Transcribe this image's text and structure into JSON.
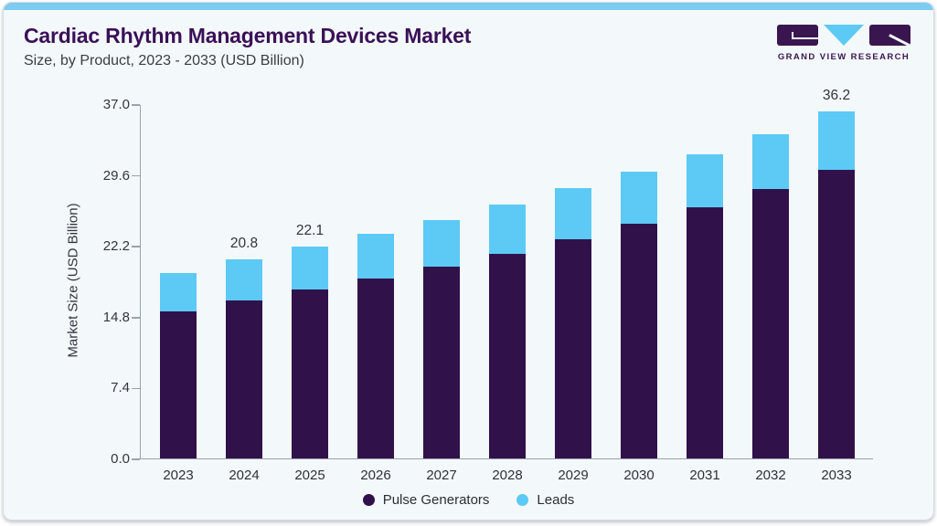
{
  "header": {
    "title": "Cardiac Rhythm Management Devices Market",
    "subtitle": "Size, by Product, 2023 - 2033 (USD Billion)"
  },
  "logo": {
    "text": "GRAND VIEW RESEARCH"
  },
  "chart_data": {
    "type": "bar",
    "stacked": true,
    "title": "Cardiac Rhythm Management Devices Market Size, by Product, 2023 - 2033 (USD Billion)",
    "ylabel": "Market Size (USD Billion)",
    "xlabel": "",
    "ylim": [
      0,
      37
    ],
    "yticks": [
      "0.0",
      "7.4",
      "14.8",
      "22.2",
      "29.6",
      "37.0"
    ],
    "grid": false,
    "legend_position": "bottom",
    "categories": [
      "2023",
      "2024",
      "2025",
      "2026",
      "2027",
      "2028",
      "2029",
      "2030",
      "2031",
      "2032",
      "2033"
    ],
    "series": [
      {
        "name": "Pulse Generators",
        "color": "#31114a",
        "values": [
          15.4,
          16.5,
          17.6,
          18.8,
          20.0,
          21.4,
          22.9,
          24.5,
          26.2,
          28.1,
          30.1
        ]
      },
      {
        "name": "Leads",
        "color": "#5ccaf4",
        "values": [
          4.0,
          4.3,
          4.5,
          4.7,
          4.9,
          5.1,
          5.3,
          5.4,
          5.6,
          5.8,
          6.1
        ]
      }
    ],
    "totals": [
      19.4,
      20.8,
      22.1,
      23.5,
      24.9,
      26.5,
      28.2,
      29.9,
      31.8,
      33.9,
      36.2
    ],
    "bar_value_labels": [
      "",
      "20.8",
      "22.1",
      "",
      "",
      "",
      "",
      "",
      "",
      "",
      "36.2"
    ]
  },
  "colors": {
    "accent_bar": "#7ecbf1",
    "card_background": "#f3f8fb",
    "title_text": "#3a1057",
    "subtitle_text": "#3b3c42",
    "axis_line": "#9aa2ab",
    "axis_text": "#34363e",
    "pulse_generators": "#31114a",
    "leads": "#5ccaf4",
    "logo_purple": "#3a1651",
    "logo_blue": "#5ccaf4"
  }
}
